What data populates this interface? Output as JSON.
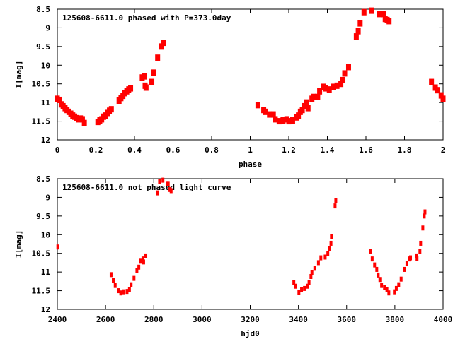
{
  "chart_data": [
    {
      "type": "scatter",
      "title": "125608-6611.0 phased with P=373.0day",
      "xlabel": "phase",
      "ylabel": "I[mag]",
      "xlim": [
        0,
        2
      ],
      "ylim": [
        8.5,
        12
      ],
      "y_inverted": true,
      "xticks": [
        "0",
        "0.2",
        "0.4",
        "0.6",
        "0.8",
        "1",
        "1.2",
        "1.4",
        "1.6",
        "1.8",
        "2"
      ],
      "yticks": [
        "8.5",
        "9",
        "9.5",
        "10",
        "10.5",
        "11",
        "11.5",
        "12"
      ],
      "grid": false,
      "color": "#ff0000",
      "points": [
        [
          0,
          10.9
        ],
        [
          0.01,
          10.93
        ],
        [
          0.02,
          11.05
        ],
        [
          0.03,
          11.1
        ],
        [
          0.04,
          11.15
        ],
        [
          0.05,
          11.2
        ],
        [
          0.06,
          11.25
        ],
        [
          0.07,
          11.3
        ],
        [
          0.08,
          11.35
        ],
        [
          0.09,
          11.38
        ],
        [
          0.1,
          11.42
        ],
        [
          0.11,
          11.45
        ],
        [
          0.12,
          11.43
        ],
        [
          0.13,
          11.45
        ],
        [
          0.14,
          11.55
        ],
        [
          0.21,
          11.52
        ],
        [
          0.22,
          11.48
        ],
        [
          0.23,
          11.45
        ],
        [
          0.24,
          11.38
        ],
        [
          0.25,
          11.35
        ],
        [
          0.26,
          11.28
        ],
        [
          0.27,
          11.22
        ],
        [
          0.28,
          11.18
        ],
        [
          0.32,
          10.95
        ],
        [
          0.33,
          10.88
        ],
        [
          0.34,
          10.82
        ],
        [
          0.35,
          10.75
        ],
        [
          0.36,
          10.7
        ],
        [
          0.37,
          10.65
        ],
        [
          0.38,
          10.62
        ],
        [
          0.44,
          10.33
        ],
        [
          0.45,
          10.3
        ],
        [
          0.455,
          10.55
        ],
        [
          0.46,
          10.6
        ],
        [
          0.49,
          10.45
        ],
        [
          0.5,
          10.2
        ],
        [
          0.52,
          9.8
        ],
        [
          0.54,
          9.5
        ],
        [
          0.55,
          9.4
        ],
        [
          1.04,
          11.07
        ],
        [
          1.07,
          11.2
        ],
        [
          1.08,
          11.25
        ],
        [
          1.1,
          11.32
        ],
        [
          1.12,
          11.32
        ],
        [
          1.13,
          11.45
        ],
        [
          1.15,
          11.5
        ],
        [
          1.17,
          11.48
        ],
        [
          1.19,
          11.45
        ],
        [
          1.2,
          11.5
        ],
        [
          1.22,
          11.48
        ],
        [
          1.24,
          11.4
        ],
        [
          1.25,
          11.35
        ],
        [
          1.26,
          11.25
        ],
        [
          1.27,
          11.2
        ],
        [
          1.28,
          11.1
        ],
        [
          1.29,
          11.0
        ],
        [
          1.3,
          11.15
        ],
        [
          1.32,
          10.9
        ],
        [
          1.33,
          10.85
        ],
        [
          1.35,
          10.85
        ],
        [
          1.36,
          10.7
        ],
        [
          1.38,
          10.58
        ],
        [
          1.39,
          10.62
        ],
        [
          1.41,
          10.65
        ],
        [
          1.43,
          10.58
        ],
        [
          1.45,
          10.55
        ],
        [
          1.47,
          10.5
        ],
        [
          1.48,
          10.4
        ],
        [
          1.49,
          10.22
        ],
        [
          1.51,
          10.05
        ],
        [
          1.55,
          9.23
        ],
        [
          1.56,
          9.09
        ],
        [
          1.57,
          8.88
        ],
        [
          1.59,
          8.58
        ],
        [
          1.63,
          8.54
        ],
        [
          1.67,
          8.63
        ],
        [
          1.69,
          8.63
        ],
        [
          1.7,
          8.76
        ],
        [
          1.71,
          8.79
        ],
        [
          1.72,
          8.82
        ],
        [
          1.94,
          10.45
        ],
        [
          1.96,
          10.6
        ],
        [
          1.97,
          10.67
        ],
        [
          1.99,
          10.81
        ],
        [
          2.0,
          10.9
        ]
      ]
    },
    {
      "type": "scatter",
      "title": "125608-6611.0 not phased light curve",
      "xlabel": "hjd0",
      "ylabel": "I[mag]",
      "xlim": [
        2400,
        4000
      ],
      "ylim": [
        8.5,
        12
      ],
      "y_inverted": true,
      "xticks": [
        "2400",
        "2600",
        "2800",
        "3000",
        "3200",
        "3400",
        "3600",
        "3800",
        "4000"
      ],
      "yticks": [
        "8.5",
        "9",
        "9.5",
        "10",
        "10.5",
        "11",
        "11.5",
        "12"
      ],
      "grid": false,
      "color": "#ff0000",
      "points": [
        [
          2402,
          10.33
        ],
        [
          2623,
          11.07
        ],
        [
          2632,
          11.22
        ],
        [
          2640,
          11.36
        ],
        [
          2653,
          11.5
        ],
        [
          2663,
          11.56
        ],
        [
          2676,
          11.53
        ],
        [
          2689,
          11.52
        ],
        [
          2699,
          11.47
        ],
        [
          2706,
          11.34
        ],
        [
          2718,
          11.17
        ],
        [
          2730,
          10.96
        ],
        [
          2738,
          10.87
        ],
        [
          2745,
          10.71
        ],
        [
          2755,
          10.65
        ],
        [
          2758,
          10.73
        ],
        [
          2767,
          10.57
        ],
        [
          2815,
          8.88
        ],
        [
          2824,
          8.58
        ],
        [
          2838,
          8.54
        ],
        [
          2856,
          8.63
        ],
        [
          2860,
          8.63
        ],
        [
          2867,
          8.79
        ],
        [
          2872,
          8.82
        ],
        [
          3381,
          11.28
        ],
        [
          3388,
          11.38
        ],
        [
          3402,
          11.55
        ],
        [
          3413,
          11.47
        ],
        [
          3425,
          11.44
        ],
        [
          3437,
          11.38
        ],
        [
          3444,
          11.28
        ],
        [
          3452,
          11.12
        ],
        [
          3456,
          11.02
        ],
        [
          3468,
          10.9
        ],
        [
          3483,
          10.75
        ],
        [
          3493,
          10.62
        ],
        [
          3511,
          10.6
        ],
        [
          3522,
          10.51
        ],
        [
          3530,
          10.37
        ],
        [
          3535,
          10.23
        ],
        [
          3537,
          10.05
        ],
        [
          3552,
          9.23
        ],
        [
          3555,
          9.09
        ],
        [
          3698,
          10.45
        ],
        [
          3706,
          10.65
        ],
        [
          3716,
          10.81
        ],
        [
          3725,
          10.93
        ],
        [
          3731,
          11.08
        ],
        [
          3738,
          11.2
        ],
        [
          3745,
          11.36
        ],
        [
          3757,
          11.42
        ],
        [
          3767,
          11.47
        ],
        [
          3775,
          11.56
        ],
        [
          3798,
          11.53
        ],
        [
          3806,
          11.44
        ],
        [
          3816,
          11.34
        ],
        [
          3826,
          11.19
        ],
        [
          3841,
          10.93
        ],
        [
          3850,
          10.78
        ],
        [
          3860,
          10.65
        ],
        [
          3865,
          10.62
        ],
        [
          3889,
          10.57
        ],
        [
          3892,
          10.64
        ],
        [
          3904,
          10.45
        ],
        [
          3907,
          10.23
        ],
        [
          3916,
          9.82
        ],
        [
          3922,
          9.5
        ],
        [
          3925,
          9.39
        ]
      ]
    }
  ]
}
